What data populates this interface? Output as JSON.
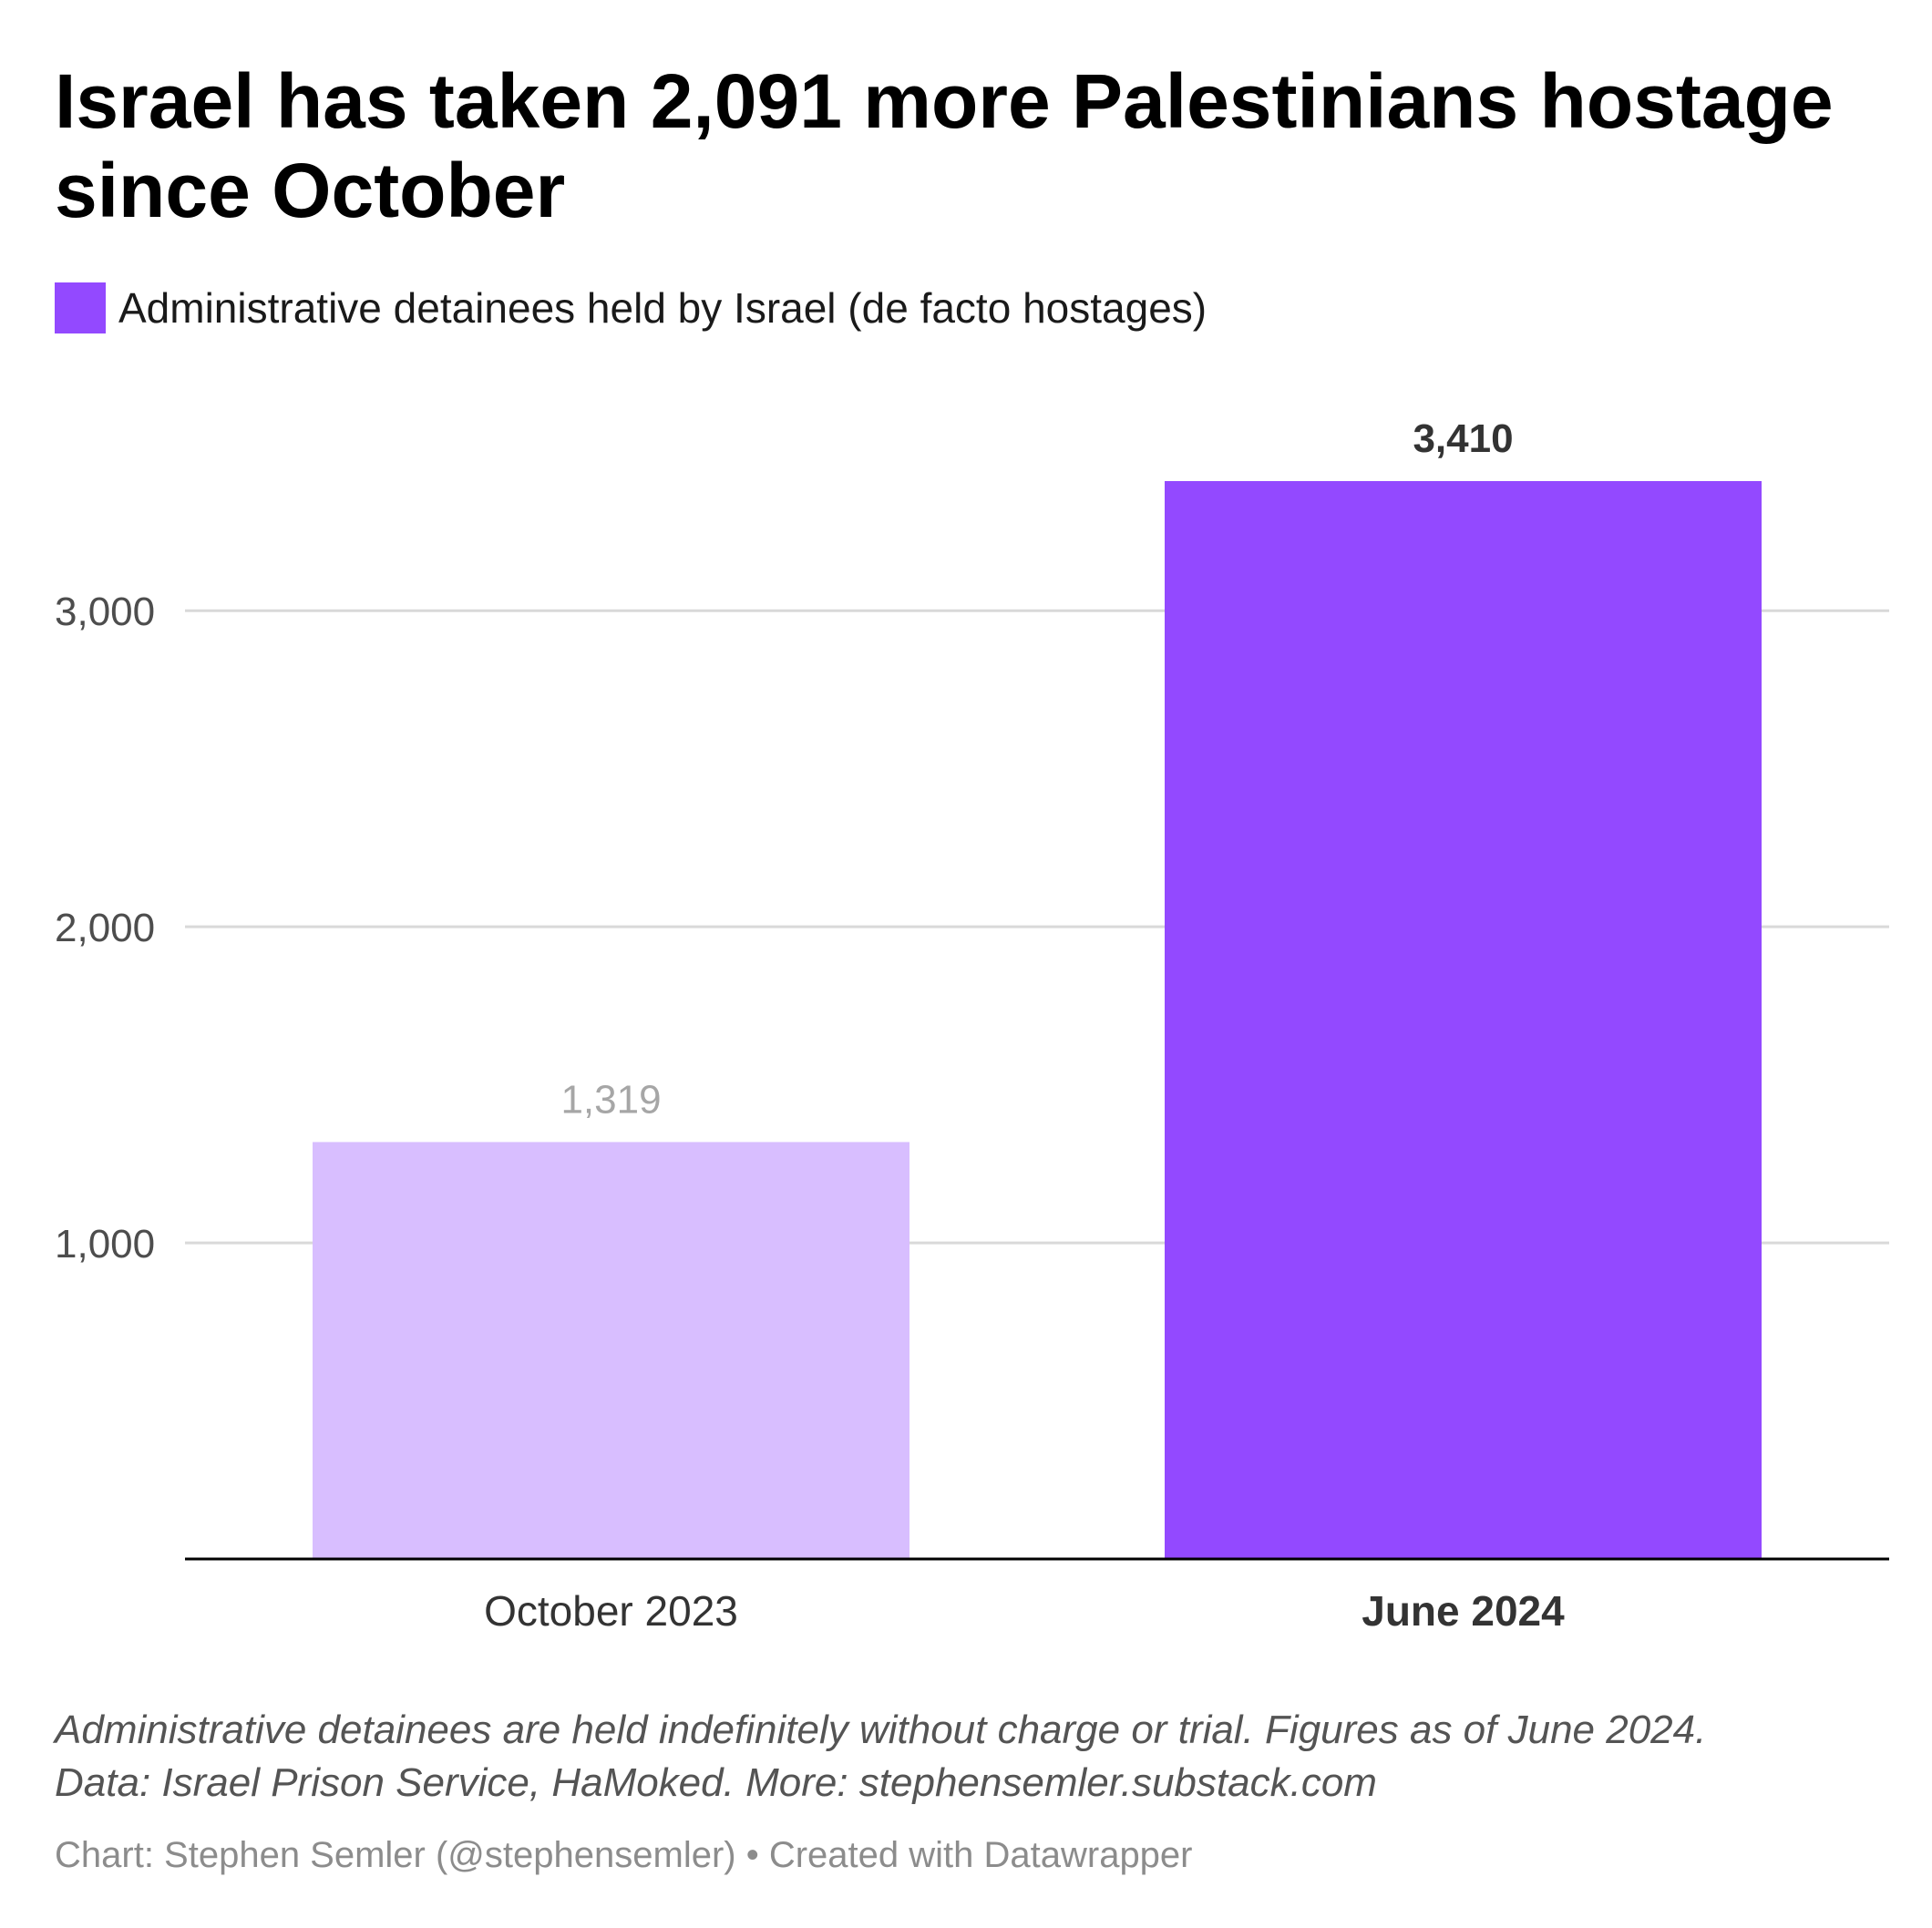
{
  "chart_data": {
    "type": "bar",
    "title": "Israel has taken 2,091 more Palestinians hostage since October",
    "legend": {
      "label": "Administrative detainees held by Israel (de facto hostages)",
      "color": "#9349ff"
    },
    "categories": [
      "October 2023",
      "June 2024"
    ],
    "series": [
      {
        "name": "Administrative detainees held by Israel (de facto hostages)",
        "values": [
          1319,
          3410
        ],
        "labels": [
          "1,319",
          "3,410"
        ]
      }
    ],
    "bar_colors": [
      "#d8beff",
      "#9349ff"
    ],
    "highlighted_category": "June 2024",
    "y_ticks": [
      1000,
      2000,
      3000
    ],
    "y_tick_labels": [
      "1,000",
      "2,000",
      "3,000"
    ],
    "ylim": [
      0,
      3410
    ],
    "grid": true,
    "xlabel": "",
    "ylabel": ""
  },
  "footnote": {
    "line1": "Administrative detainees are held indefinitely without charge or trial. Figures as of June 2024.",
    "line2": "Data: Israel Prison Service, HaMoked. More: stephensemler.substack.com"
  },
  "credit": "Chart: Stephen Semler (@stephensemler) • Created with Datawrapper"
}
